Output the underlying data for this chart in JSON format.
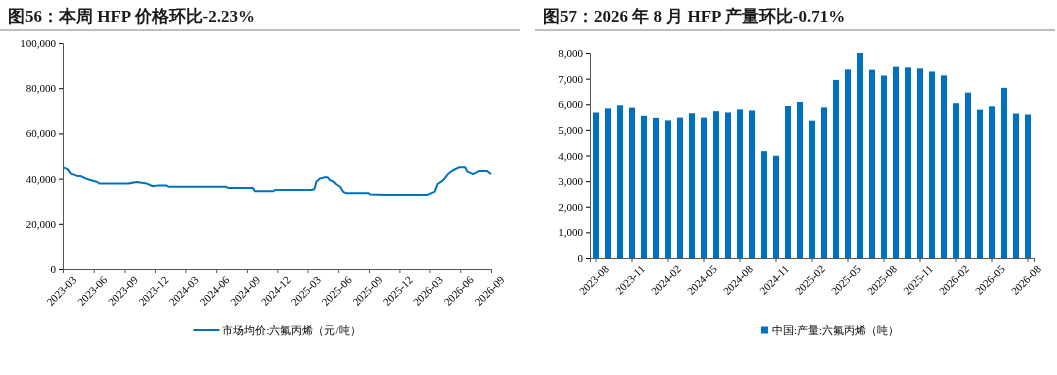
{
  "chart_data": [
    {
      "type": "line",
      "title": "图56：本周 HFP 价格环比-2.23%",
      "x": [
        "2023-03-01",
        "2023-03-15",
        "2023-03-25",
        "2023-04-10",
        "2023-04-25",
        "2023-05-04",
        "2023-05-19",
        "2023-06-10",
        "2023-06-19",
        "2023-09-13",
        "2023-10-07",
        "2023-11-07",
        "2023-11-25",
        "2023-12-10",
        "2024-01-04",
        "2024-01-10",
        "2024-07-01",
        "2024-07-07",
        "2024-09-19",
        "2024-09-25",
        "2024-11-19",
        "2024-11-25",
        "2025-03-16",
        "2025-03-22",
        "2025-03-28",
        "2025-04-07",
        "2025-04-22",
        "2025-05-01",
        "2025-05-07",
        "2025-05-16",
        "2025-05-25",
        "2025-06-07",
        "2025-06-16",
        "2025-06-25",
        "2025-09-01",
        "2025-09-04",
        "2025-10-25",
        "2026-02-22",
        "2026-03-07",
        "2026-03-16",
        "2026-03-25",
        "2026-04-10",
        "2026-04-25",
        "2026-05-10",
        "2026-05-28",
        "2026-06-16",
        "2026-06-22",
        "2026-07-10",
        "2026-07-28",
        "2026-08-19",
        "2026-08-25",
        "2026-09-01"
      ],
      "series": [
        {
          "name": "市场均价:六氟丙烯（元/吨）",
          "color": "#0070c0",
          "values": [
            45100,
            44200,
            42200,
            41300,
            41000,
            40300,
            39500,
            38600,
            37800,
            37800,
            38500,
            37800,
            36600,
            37000,
            37000,
            36400,
            36400,
            35800,
            35800,
            34400,
            34400,
            35000,
            35000,
            35400,
            38600,
            40000,
            40600,
            40600,
            39400,
            38900,
            37600,
            36300,
            34100,
            33500,
            33500,
            33000,
            32700,
            32700,
            33600,
            34100,
            37600,
            39200,
            42000,
            43700,
            45000,
            45000,
            43200,
            42000,
            43400,
            43400,
            42800,
            41900
          ]
        }
      ],
      "xlim": [
        "2023-03-01",
        "2026-09-01"
      ],
      "xticks": [
        {
          "value": "2023-03",
          "label": "2023-03"
        },
        {
          "value": "2023-06",
          "label": "2023-06"
        },
        {
          "value": "2023-09",
          "label": "2023-09"
        },
        {
          "value": "2023-12",
          "label": "2023-12"
        },
        {
          "value": "2024-03",
          "label": "2024-03"
        },
        {
          "value": "2024-06",
          "label": "2024-06"
        },
        {
          "value": "2024-09",
          "label": "2024-09"
        },
        {
          "value": "2024-12",
          "label": "2024-12"
        },
        {
          "value": "2025-03",
          "label": "2025-03"
        },
        {
          "value": "2025-06",
          "label": "2025-06"
        },
        {
          "value": "2025-09",
          "label": "2025-09"
        },
        {
          "value": "2025-12",
          "label": "2025-12"
        },
        {
          "value": "2026-03",
          "label": "2026-03"
        },
        {
          "value": "2026-06",
          "label": "2026-06"
        },
        {
          "value": "2026-09",
          "label": "2026-09"
        }
      ],
      "ylim": [
        0,
        100000
      ],
      "yticks": [
        0,
        {
          "value": 20000,
          "label": "20,000"
        },
        {
          "value": 40000,
          "label": "40,000"
        },
        {
          "value": 60000,
          "label": "60,000"
        },
        {
          "value": 80000,
          "label": "80,000"
        },
        {
          "value": 100000,
          "label": "100,000"
        }
      ],
      "grid": false,
      "legend": "bottom",
      "marker": "none",
      "line_style": "solid"
    },
    {
      "type": "bar",
      "title": "图57：2026 年 8 月 HFP 产量环比-0.71%",
      "categories": [
        "2023-08",
        null,
        null,
        "2023-11",
        null,
        null,
        "2024-02",
        null,
        null,
        "2024-05",
        null,
        null,
        "2024-08",
        null,
        null,
        "2024-11",
        null,
        null,
        "2025-02",
        null,
        null,
        "2025-05",
        null,
        null,
        "2025-08",
        null,
        null,
        "2025-11",
        null,
        null,
        "2026-02",
        null,
        null,
        "2026-05",
        null,
        null,
        "2026-08"
      ],
      "series": [
        {
          "name": "中国:产量:六氟丙烯（吨）",
          "color": "#0070c0",
          "values": [
            5680,
            5840,
            5960,
            5870,
            5550,
            5470,
            5370,
            5480,
            5650,
            5480,
            5730,
            5680,
            5800,
            5760,
            4170,
            3990,
            5930,
            6090,
            5360,
            5880,
            6950,
            7360,
            8000,
            7350,
            7120,
            7470,
            7440,
            7400,
            7280,
            7130,
            6040,
            6450,
            5790,
            5920,
            6640,
            5640,
            5600
          ]
        }
      ],
      "ylim": [
        0,
        8000
      ],
      "yticks": [
        0,
        {
          "value": 1000,
          "label": "1,000"
        },
        {
          "value": 2000,
          "label": "2,000"
        },
        {
          "value": 3000,
          "label": "3,000"
        },
        {
          "value": 4000,
          "label": "4,000"
        },
        {
          "value": 5000,
          "label": "5,000"
        },
        {
          "value": 6000,
          "label": "6,000"
        },
        {
          "value": 7000,
          "label": "7,000"
        },
        {
          "value": 8000,
          "label": "8,000"
        }
      ],
      "grid": false,
      "legend": "bottom"
    }
  ]
}
